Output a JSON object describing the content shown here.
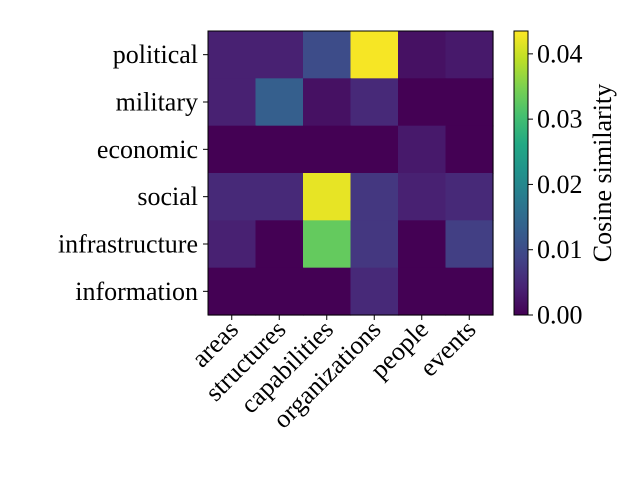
{
  "chart_data": {
    "type": "heatmap",
    "title": "",
    "xlabel": "",
    "ylabel": "",
    "rows": [
      "political",
      "military",
      "economic",
      "social",
      "infrastructure",
      "information"
    ],
    "columns": [
      "areas",
      "structures",
      "capabilities",
      "organizations",
      "people",
      "events"
    ],
    "values": [
      [
        0.004,
        0.004,
        0.01,
        0.043,
        0.002,
        0.003
      ],
      [
        0.004,
        0.013,
        0.002,
        0.005,
        0.0,
        0.0
      ],
      [
        0.0,
        0.0,
        0.0,
        0.0,
        0.003,
        0.0
      ],
      [
        0.005,
        0.005,
        0.042,
        0.007,
        0.004,
        0.005
      ],
      [
        0.004,
        0.0,
        0.033,
        0.007,
        0.0,
        0.008
      ],
      [
        0.0,
        0.0,
        0.0,
        0.005,
        0.0,
        0.0
      ]
    ],
    "colormap": "viridis",
    "colorbar": {
      "label": "Cosine similarity",
      "range": [
        0.0,
        0.0435
      ],
      "ticks": [
        0.0,
        0.01,
        0.02,
        0.03,
        0.04
      ],
      "tick_labels": [
        "0.00",
        "0.01",
        "0.02",
        "0.03",
        "0.04"
      ]
    }
  }
}
